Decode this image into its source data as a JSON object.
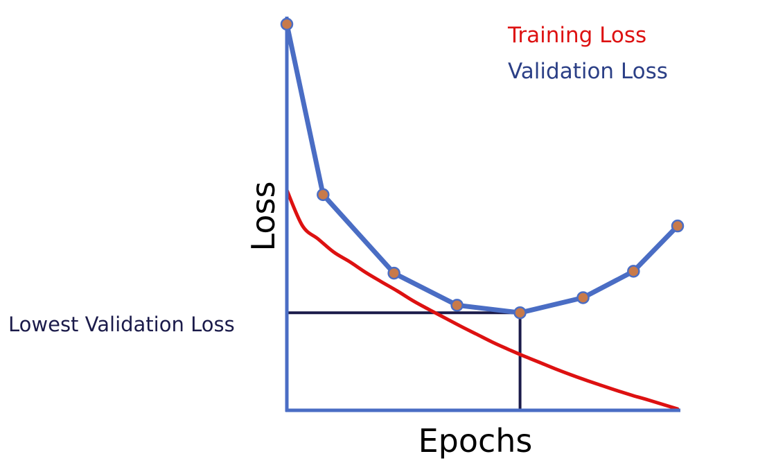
{
  "chart_data": {
    "type": "line",
    "title": "",
    "xlabel": "Epochs",
    "ylabel": "Loss",
    "ticks_shown": false,
    "grid": false,
    "legend_position": "top-right",
    "xlim": [
      0,
      12.4
    ],
    "ylim": [
      0,
      10
    ],
    "series": [
      {
        "name": "Training Loss",
        "color": "#dd1111",
        "kind": "smooth-curve",
        "markers": false,
        "x": [
          0,
          0.5,
          1,
          1.5,
          2,
          2.5,
          3,
          3.5,
          4,
          4.5,
          5,
          5.5,
          6,
          6.5,
          7,
          7.5,
          8,
          8.5,
          9,
          9.5,
          10,
          10.5,
          11,
          11.5,
          12.4
        ],
        "values": [
          5.8,
          4.85,
          4.5,
          4.15,
          3.9,
          3.62,
          3.37,
          3.13,
          2.87,
          2.64,
          2.42,
          2.2,
          1.99,
          1.78,
          1.59,
          1.41,
          1.24,
          1.07,
          0.91,
          0.76,
          0.62,
          0.48,
          0.35,
          0.23,
          0.0
        ]
      },
      {
        "name": "Validation Loss",
        "color": "#4a6dc4",
        "marker_color": "#c87a4a",
        "kind": "line-with-markers",
        "markers": true,
        "x": [
          0,
          1.15,
          3.4,
          5.4,
          7.4,
          9.4,
          11,
          12.4
        ],
        "values": [
          10.2,
          5.68,
          3.6,
          2.75,
          2.55,
          2.95,
          3.65,
          4.85
        ]
      }
    ],
    "annotations": [
      {
        "text": "Lowest Validation Loss",
        "x": 7.4,
        "y": 2.55,
        "color": "#1b1b4a"
      }
    ]
  }
}
